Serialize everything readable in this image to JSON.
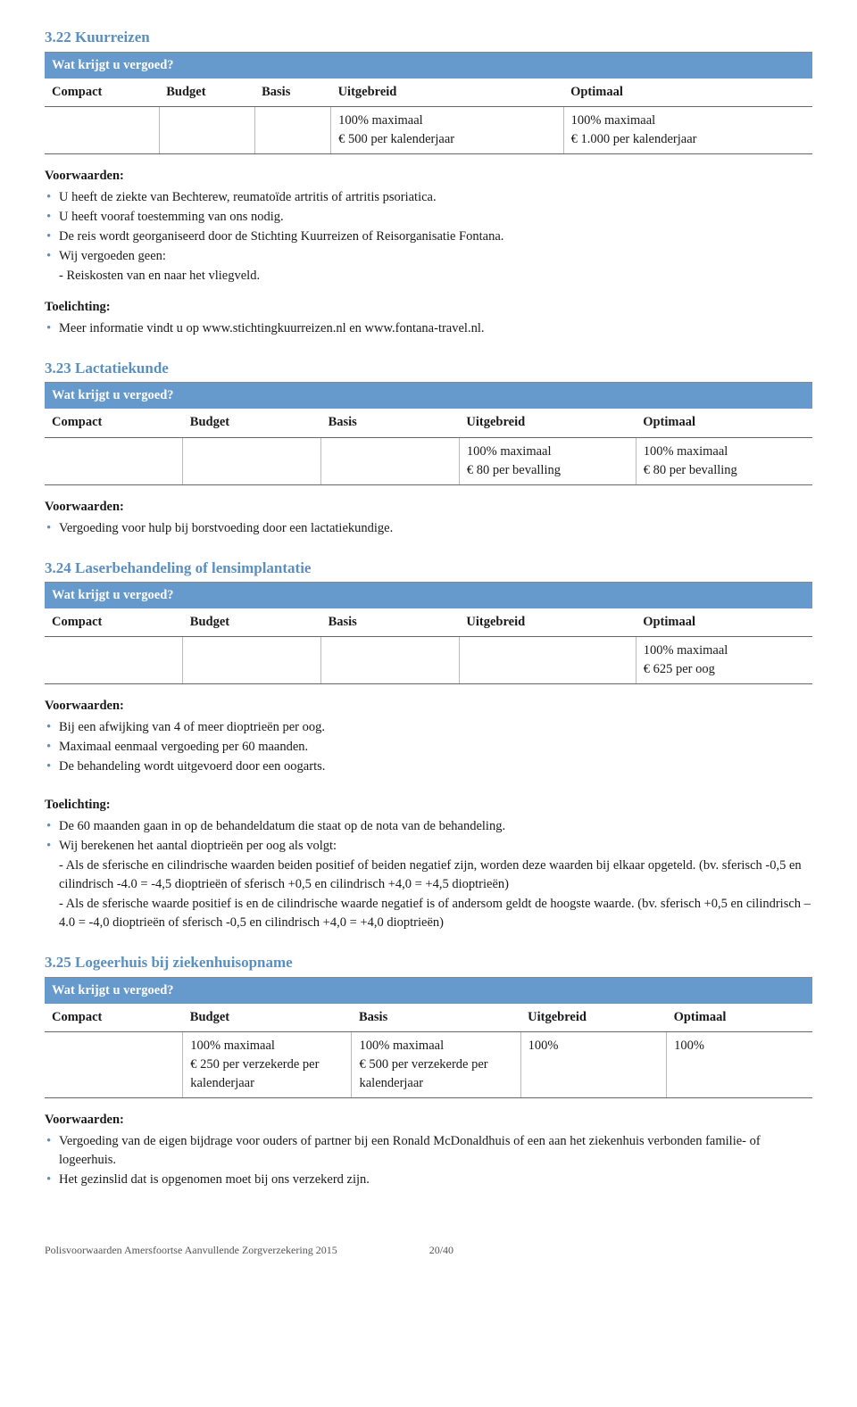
{
  "sections": {
    "s322": {
      "heading": "3.22  Kuurreizen",
      "bluebar": "Wat krijgt u vergoed?",
      "cols": [
        "Compact",
        "Budget",
        "Basis",
        "Uitgebreid",
        "Optimaal"
      ],
      "colwidths": [
        "18%",
        "18%",
        "18%",
        "23%",
        "23%"
      ],
      "cells": [
        "",
        "",
        "",
        "100% maximaal\n€ 500 per kalenderjaar",
        "100% maximaal\n€ 1.000 per kalenderjaar"
      ],
      "voorwaarden_label": "Voorwaarden:",
      "voorwaarden": [
        "U heeft de ziekte van Bechterew, reumatoïde artritis of artritis psoriatica.",
        "U heeft vooraf toestemming van ons nodig.",
        "De reis wordt georganiseerd door de Stichting Kuurreizen of Reisorganisatie Fontana.",
        "Wij vergoeden geen:"
      ],
      "voorwaarden_sub": [
        "- Reiskosten van en naar het vliegveld."
      ],
      "toelichting_label": "Toelichting:",
      "toelichting": [
        "Meer informatie vindt u op www.stichtingkuurreizen.nl en www.fontana-travel.nl."
      ]
    },
    "s323": {
      "heading": "3.23  Lactatiekunde",
      "bluebar": "Wat krijgt u vergoed?",
      "cols": [
        "Compact",
        "Budget",
        "Basis",
        "Uitgebreid",
        "Optimaal"
      ],
      "colwidths": [
        "18%",
        "18%",
        "18%",
        "23%",
        "23%"
      ],
      "cells": [
        "",
        "",
        "",
        "100% maximaal\n€ 80 per bevalling",
        "100% maximaal\n€ 80 per bevalling"
      ],
      "voorwaarden_label": "Voorwaarden:",
      "voorwaarden": [
        "Vergoeding voor hulp bij borstvoeding door een lactatiekundige."
      ]
    },
    "s324": {
      "heading": "3.24  Laserbehandeling of lensimplantatie",
      "bluebar": "Wat krijgt u vergoed?",
      "cols": [
        "Compact",
        "Budget",
        "Basis",
        "Uitgebreid",
        "Optimaal"
      ],
      "colwidths": [
        "18%",
        "18%",
        "18%",
        "23%",
        "23%"
      ],
      "cells": [
        "",
        "",
        "",
        "",
        "100% maximaal\n€ 625 per oog"
      ],
      "voorwaarden_label": "Voorwaarden:",
      "voorwaarden": [
        "Bij een afwijking van 4 of meer dioptrieën per oog.",
        "Maximaal eenmaal vergoeding per 60 maanden.",
        "De behandeling wordt uitgevoerd door een oogarts."
      ],
      "toelichting_label": "Toelichting:",
      "toelichting": [
        "De 60 maanden gaan in op de behandeldatum die staat op de nota van de behandeling.",
        "Wij berekenen het aantal dioptrieën per oog als volgt:"
      ],
      "toelichting_sub": [
        "- Als de sferische en cilindrische waarden beiden positief of beiden negatief  zijn, worden deze waarden bij elkaar opgeteld. (bv. sferisch -0,5 en cilindrisch -4.0 = -4,5 dioptrieën of sferisch +0,5 en cilindrisch +4,0 = +4,5 dioptrieën)",
        "- Als de sferische waarde positief is en de cilindrische waarde negatief is of andersom  geldt de hoogste waarde. (bv. sferisch +0,5 en cilindrisch – 4.0 = -4,0 dioptrieën of sferisch -0,5 en cilindrisch +4,0 = +4,0 dioptrieën)"
      ]
    },
    "s325": {
      "heading": "3.25  Logeerhuis bij ziekenhuisopname",
      "bluebar": "Wat krijgt u vergoed?",
      "cols": [
        "Compact",
        "Budget",
        "Basis",
        "Uitgebreid",
        "Optimaal"
      ],
      "colwidths": [
        "18%",
        "22%",
        "22%",
        "19%",
        "19%"
      ],
      "cells": [
        "",
        "100% maximaal\n€ 250 per verzekerde per kalenderjaar",
        "100% maximaal\n€ 500 per verzekerde per kalenderjaar",
        "100%",
        "100%"
      ],
      "voorwaarden_label": "Voorwaarden:",
      "voorwaarden": [
        "Vergoeding van de eigen bijdrage voor ouders of partner bij een Ronald McDonaldhuis of een aan het ziekenhuis verbonden familie- of logeerhuis.",
        "Het gezinslid dat is opgenomen moet bij ons verzekerd zijn."
      ]
    }
  },
  "footer": {
    "text": "Polisvoorwaarden Amersfoortse Aanvullende Zorgverzekering 2015",
    "page": "20/40"
  }
}
